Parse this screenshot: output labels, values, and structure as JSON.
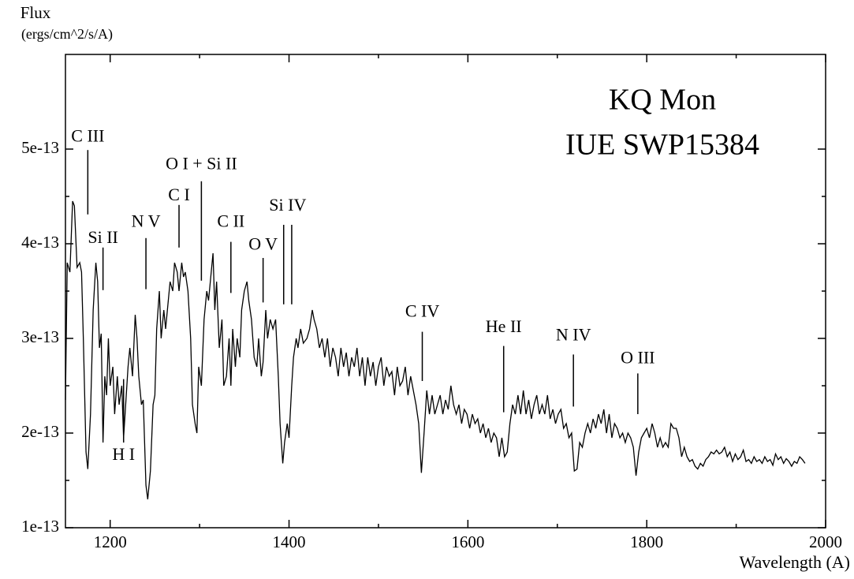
{
  "chart_data": {
    "type": "line",
    "title": [
      "KQ Mon",
      "IUE SWP15384"
    ],
    "y_label": [
      "Flux",
      "(ergs/cm^2/s/A)"
    ],
    "x_label": "Wavelength (A)",
    "color": "#000000",
    "xlim": [
      1150,
      2000
    ],
    "xticks": [
      1200,
      1400,
      1600,
      1800,
      2000
    ],
    "ylim": [
      1e-13,
      6e-13
    ],
    "yticks": [
      1e-13,
      2e-13,
      3e-13,
      4e-13,
      5e-13
    ],
    "x": [
      1150,
      1152,
      1155,
      1158,
      1160,
      1163,
      1166,
      1168,
      1170,
      1173,
      1175,
      1178,
      1181,
      1184,
      1186,
      1188,
      1190,
      1192,
      1194,
      1196,
      1198,
      1200,
      1203,
      1205,
      1208,
      1210,
      1213,
      1215,
      1218,
      1220,
      1222,
      1225,
      1228,
      1230,
      1232,
      1235,
      1237,
      1240,
      1242,
      1245,
      1248,
      1250,
      1252,
      1255,
      1257,
      1260,
      1262,
      1265,
      1267,
      1270,
      1272,
      1275,
      1277,
      1280,
      1282,
      1284,
      1287,
      1290,
      1292,
      1295,
      1297,
      1299,
      1302,
      1305,
      1308,
      1310,
      1312,
      1315,
      1317,
      1319,
      1322,
      1325,
      1327,
      1330,
      1333,
      1335,
      1337,
      1340,
      1342,
      1345,
      1347,
      1350,
      1353,
      1355,
      1358,
      1361,
      1364,
      1366,
      1369,
      1371,
      1374,
      1376,
      1379,
      1382,
      1385,
      1388,
      1390,
      1393,
      1395,
      1398,
      1400,
      1403,
      1405,
      1408,
      1410,
      1413,
      1416,
      1420,
      1423,
      1426,
      1428,
      1431,
      1434,
      1437,
      1440,
      1443,
      1446,
      1449,
      1452,
      1455,
      1458,
      1461,
      1464,
      1467,
      1470,
      1473,
      1476,
      1479,
      1482,
      1485,
      1488,
      1491,
      1494,
      1497,
      1500,
      1503,
      1506,
      1509,
      1512,
      1515,
      1518,
      1521,
      1524,
      1527,
      1530,
      1533,
      1536,
      1539,
      1542,
      1545,
      1548,
      1551,
      1554,
      1557,
      1560,
      1563,
      1566,
      1569,
      1572,
      1575,
      1578,
      1581,
      1584,
      1587,
      1590,
      1593,
      1596,
      1599,
      1602,
      1605,
      1608,
      1611,
      1614,
      1617,
      1620,
      1623,
      1626,
      1629,
      1632,
      1635,
      1638,
      1641,
      1644,
      1647,
      1650,
      1653,
      1656,
      1659,
      1662,
      1665,
      1668,
      1671,
      1674,
      1677,
      1680,
      1683,
      1686,
      1689,
      1692,
      1695,
      1698,
      1701,
      1704,
      1707,
      1710,
      1713,
      1716,
      1719,
      1722,
      1725,
      1728,
      1731,
      1734,
      1737,
      1740,
      1743,
      1746,
      1749,
      1752,
      1755,
      1758,
      1761,
      1764,
      1767,
      1770,
      1773,
      1776,
      1779,
      1782,
      1785,
      1788,
      1791,
      1794,
      1797,
      1800,
      1803,
      1806,
      1809,
      1812,
      1815,
      1818,
      1821,
      1824,
      1827,
      1830,
      1833,
      1836,
      1839,
      1842,
      1845,
      1848,
      1851,
      1854,
      1857,
      1860,
      1863,
      1866,
      1869,
      1872,
      1875,
      1878,
      1881,
      1884,
      1887,
      1890,
      1893,
      1896,
      1899,
      1902,
      1905,
      1908,
      1911,
      1914,
      1917,
      1920,
      1923,
      1926,
      1929,
      1932,
      1935,
      1938,
      1941,
      1944,
      1947,
      1950,
      1953,
      1956,
      1959,
      1962,
      1965,
      1968,
      1971,
      1974,
      1977
    ],
    "values": [
      2.35e-13,
      3.8e-13,
      3.7e-13,
      4.45e-13,
      4.4e-13,
      3.75e-13,
      3.8e-13,
      3.7e-13,
      3e-13,
      1.8e-13,
      1.62e-13,
      2.2e-13,
      3.3e-13,
      3.8e-13,
      3.6e-13,
      2.9e-13,
      3.05e-13,
      1.9e-13,
      2.6e-13,
      2.4e-13,
      3e-13,
      2.5e-13,
      2.7e-13,
      2.2e-13,
      2.6e-13,
      2.3e-13,
      2.5e-13,
      1.95e-13,
      2.4e-13,
      2.7e-13,
      2.9e-13,
      2.6e-13,
      3.25e-13,
      3e-13,
      2.6e-13,
      2.3e-13,
      2.35e-13,
      1.45e-13,
      1.3e-13,
      1.6e-13,
      2.3e-13,
      2.4e-13,
      3.1e-13,
      3.5e-13,
      3e-13,
      3.3e-13,
      3.1e-13,
      3.4e-13,
      3.6e-13,
      3.5e-13,
      3.8e-13,
      3.7e-13,
      3.5e-13,
      3.8e-13,
      3.65e-13,
      3.7e-13,
      3.5e-13,
      3e-13,
      2.3e-13,
      2.1e-13,
      2e-13,
      2.7e-13,
      2.5e-13,
      3.2e-13,
      3.5e-13,
      3.4e-13,
      3.6e-13,
      3.9e-13,
      3.3e-13,
      3.6e-13,
      2.9e-13,
      3.2e-13,
      2.5e-13,
      2.6e-13,
      3e-13,
      2.5e-13,
      3.1e-13,
      2.7e-13,
      3e-13,
      2.8e-13,
      3.3e-13,
      3.5e-13,
      3.6e-13,
      3.4e-13,
      3.2e-13,
      2.8e-13,
      2.7e-13,
      3e-13,
      2.6e-13,
      2.75e-13,
      3.3e-13,
      3e-13,
      3.2e-13,
      3.1e-13,
      3.2e-13,
      2.6e-13,
      2.1e-13,
      1.68e-13,
      1.9e-13,
      2.1e-13,
      1.95e-13,
      2.5e-13,
      2.8e-13,
      3e-13,
      2.9e-13,
      3.1e-13,
      2.95e-13,
      3e-13,
      3.1e-13,
      3.3e-13,
      3.2e-13,
      3.1e-13,
      2.9e-13,
      3e-13,
      2.8e-13,
      3e-13,
      2.7e-13,
      2.9e-13,
      2.8e-13,
      2.6e-13,
      2.9e-13,
      2.7e-13,
      2.85e-13,
      2.6e-13,
      2.8e-13,
      2.7e-13,
      2.9e-13,
      2.6e-13,
      2.8e-13,
      2.5e-13,
      2.8e-13,
      2.6e-13,
      2.75e-13,
      2.5e-13,
      2.7e-13,
      2.8e-13,
      2.5e-13,
      2.7e-13,
      2.6e-13,
      2.65e-13,
      2.4e-13,
      2.7e-13,
      2.5e-13,
      2.55e-13,
      2.7e-13,
      2.4e-13,
      2.6e-13,
      2.45e-13,
      2.3e-13,
      2.1e-13,
      1.58e-13,
      2e-13,
      2.45e-13,
      2.2e-13,
      2.4e-13,
      2.2e-13,
      2.3e-13,
      2.4e-13,
      2.2e-13,
      2.35e-13,
      2.25e-13,
      2.5e-13,
      2.3e-13,
      2.2e-13,
      2.3e-13,
      2.1e-13,
      2.25e-13,
      2.2e-13,
      2.05e-13,
      2.2e-13,
      2.1e-13,
      2.15e-13,
      2e-13,
      2.1e-13,
      1.95e-13,
      2.05e-13,
      1.9e-13,
      2e-13,
      1.95e-13,
      1.75e-13,
      1.95e-13,
      1.75e-13,
      1.8e-13,
      2.1e-13,
      2.3e-13,
      2.2e-13,
      2.4e-13,
      2.2e-13,
      2.45e-13,
      2.2e-13,
      2.35e-13,
      2.15e-13,
      2.3e-13,
      2.4e-13,
      2.2e-13,
      2.3e-13,
      2.2e-13,
      2.4e-13,
      2.15e-13,
      2.25e-13,
      2.1e-13,
      2.2e-13,
      2.25e-13,
      2.05e-13,
      2.1e-13,
      1.95e-13,
      2e-13,
      1.6e-13,
      1.62e-13,
      1.9e-13,
      1.85e-13,
      2e-13,
      2.1e-13,
      2e-13,
      2.15e-13,
      2.05e-13,
      2.2e-13,
      2.1e-13,
      2.25e-13,
      2e-13,
      2.2e-13,
      1.95e-13,
      2.1e-13,
      2.05e-13,
      1.95e-13,
      2e-13,
      1.9e-13,
      2e-13,
      1.95e-13,
      1.85e-13,
      1.55e-13,
      1.8e-13,
      1.95e-13,
      2e-13,
      2.05e-13,
      1.95e-13,
      2.1e-13,
      2e-13,
      1.85e-13,
      1.95e-13,
      1.85e-13,
      1.9e-13,
      1.85e-13,
      2.1e-13,
      2.05e-13,
      2.05e-13,
      1.95e-13,
      1.75e-13,
      1.85e-13,
      1.75e-13,
      1.7e-13,
      1.72e-13,
      1.65e-13,
      1.62e-13,
      1.68e-13,
      1.65e-13,
      1.72e-13,
      1.75e-13,
      1.8e-13,
      1.78e-13,
      1.82e-13,
      1.78e-13,
      1.8e-13,
      1.85e-13,
      1.75e-13,
      1.8e-13,
      1.7e-13,
      1.78e-13,
      1.72e-13,
      1.75e-13,
      1.82e-13,
      1.7e-13,
      1.72e-13,
      1.68e-13,
      1.75e-13,
      1.7e-13,
      1.72e-13,
      1.68e-13,
      1.75e-13,
      1.7e-13,
      1.72e-13,
      1.66e-13,
      1.78e-13,
      1.72e-13,
      1.75e-13,
      1.68e-13,
      1.73e-13,
      1.7e-13,
      1.65e-13,
      1.7e-13,
      1.68e-13,
      1.75e-13,
      1.72e-13,
      1.68e-13
    ],
    "annotations": [
      {
        "text": "C III",
        "x": [
          1175
        ],
        "y_text": 5.12e-13,
        "y_top": 4.99e-13,
        "y_bottom": 4.31e-13
      },
      {
        "text": "Si II",
        "x": [
          1192
        ],
        "y_text": 4.05e-13,
        "y_top": 3.96e-13,
        "y_bottom": 3.51e-13
      },
      {
        "text": "H I",
        "x": [
          1215
        ],
        "y_text": 1.76e-13,
        "y_top": 2.57e-13,
        "y_bottom": 1.9e-13
      },
      {
        "text": "N V",
        "x": [
          1240
        ],
        "y_text": 4.22e-13,
        "y_top": 4.06e-13,
        "y_bottom": 3.52e-13
      },
      {
        "text": "C I",
        "x": [
          1277
        ],
        "y_text": 4.5e-13,
        "y_top": 4.41e-13,
        "y_bottom": 3.96e-13
      },
      {
        "text": "O I + Si II",
        "x": [
          1302
        ],
        "y_text": 4.83e-13,
        "y_top": 4.66e-13,
        "y_bottom": 3.61e-13
      },
      {
        "text": "C II",
        "x": [
          1335
        ],
        "y_text": 4.22e-13,
        "y_top": 4.02e-13,
        "y_bottom": 3.48e-13
      },
      {
        "text": "O V",
        "x": [
          1371
        ],
        "y_text": 3.98e-13,
        "y_top": 3.85e-13,
        "y_bottom": 3.38e-13
      },
      {
        "text": "Si IV",
        "x": [
          1394,
          1403
        ],
        "y_text": 4.39e-13,
        "y_top": 4.2e-13,
        "y_bottom": 3.36e-13
      },
      {
        "text": "C IV",
        "x": [
          1549
        ],
        "y_text": 3.27e-13,
        "y_top": 3.07e-13,
        "y_bottom": 2.55e-13
      },
      {
        "text": "He II",
        "x": [
          1640
        ],
        "y_text": 3.11e-13,
        "y_top": 2.92e-13,
        "y_bottom": 2.22e-13
      },
      {
        "text": "N IV",
        "x": [
          1718
        ],
        "y_text": 3.02e-13,
        "y_top": 2.83e-13,
        "y_bottom": 2.28e-13
      },
      {
        "text": "O III",
        "x": [
          1790
        ],
        "y_text": 2.78e-13,
        "y_top": 2.63e-13,
        "y_bottom": 2.2e-13
      }
    ]
  }
}
